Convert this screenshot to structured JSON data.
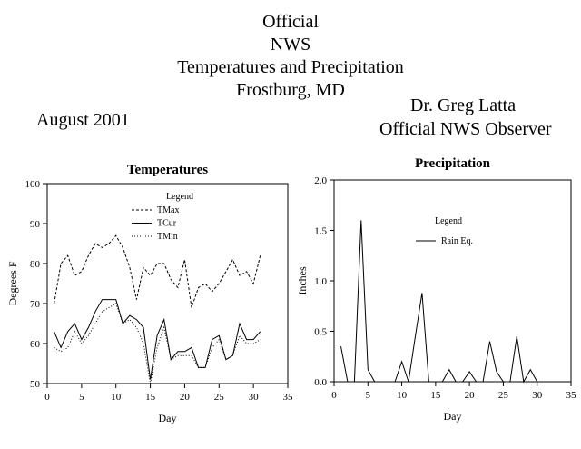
{
  "header": {
    "line1": "Official",
    "line2": "NWS",
    "line3": "Temperatures and Precipitation",
    "line4": "Frostburg, MD",
    "period": "August 2001",
    "observer_name": "Dr. Greg Latta",
    "observer_title": "Official NWS Observer"
  },
  "chart_data": [
    {
      "type": "line",
      "title": "Temperatures",
      "xlabel": "Day",
      "ylabel": "Degrees F",
      "xlim": [
        0,
        35
      ],
      "ylim": [
        50,
        100
      ],
      "xticks": [
        0,
        5,
        10,
        15,
        20,
        25,
        30,
        35
      ],
      "yticks": [
        50,
        60,
        70,
        80,
        90,
        100
      ],
      "grid": false,
      "legend": {
        "title": "Legend",
        "placement": "top-center"
      },
      "x": [
        1,
        2,
        3,
        4,
        5,
        6,
        7,
        8,
        9,
        10,
        11,
        12,
        13,
        14,
        15,
        16,
        17,
        18,
        19,
        20,
        21,
        22,
        23,
        24,
        25,
        26,
        27,
        28,
        29,
        30,
        31
      ],
      "series": [
        {
          "name": "TMax",
          "style": "dashed",
          "values": [
            70,
            80,
            82,
            77,
            78,
            82,
            85,
            84,
            85,
            87,
            84,
            79,
            71,
            79,
            77,
            80,
            80,
            76,
            74,
            81,
            69,
            74,
            75,
            73,
            75,
            78,
            81,
            77,
            78,
            75,
            82
          ]
        },
        {
          "name": "TCur",
          "style": "solid",
          "values": [
            63,
            59,
            63,
            65,
            61,
            64,
            68,
            71,
            71,
            71,
            65,
            67,
            66,
            64,
            51,
            62,
            66,
            56,
            58,
            58,
            59,
            54,
            54,
            61,
            62,
            56,
            57,
            65,
            61,
            61,
            63
          ]
        },
        {
          "name": "TMin",
          "style": "dotted",
          "values": [
            59,
            58,
            59,
            63,
            60,
            62,
            65,
            68,
            69,
            70,
            65,
            66,
            64,
            60,
            50,
            59,
            64,
            56,
            57,
            57,
            57,
            54,
            54,
            59,
            61,
            56,
            57,
            62,
            60,
            60,
            61
          ]
        }
      ]
    },
    {
      "type": "line",
      "title": "Precipitation",
      "xlabel": "Day",
      "ylabel": "Inches",
      "xlim": [
        0,
        35
      ],
      "ylim": [
        0,
        2
      ],
      "xticks": [
        0,
        5,
        10,
        15,
        20,
        25,
        30,
        35
      ],
      "yticks": [
        "0.0",
        "0.5",
        "1.0",
        "1.5",
        "2.0"
      ],
      "grid": false,
      "legend": {
        "title": "Legend",
        "placement": "top-center"
      },
      "x": [
        1,
        2,
        3,
        4,
        5,
        6,
        7,
        8,
        9,
        10,
        11,
        12,
        13,
        14,
        15,
        16,
        17,
        18,
        19,
        20,
        21,
        22,
        23,
        24,
        25,
        26,
        27,
        28,
        29,
        30,
        31
      ],
      "series": [
        {
          "name": "Rain Eq.",
          "style": "solid",
          "values": [
            0.35,
            0.0,
            0.0,
            1.6,
            0.12,
            0.0,
            0.0,
            0.0,
            0.0,
            0.2,
            0.0,
            0.45,
            0.88,
            0.0,
            0.0,
            0.0,
            0.12,
            0.0,
            0.0,
            0.1,
            0.0,
            0.0,
            0.4,
            0.1,
            0.0,
            0.0,
            0.45,
            0.0,
            0.12,
            0.0,
            0.0
          ]
        }
      ]
    }
  ]
}
